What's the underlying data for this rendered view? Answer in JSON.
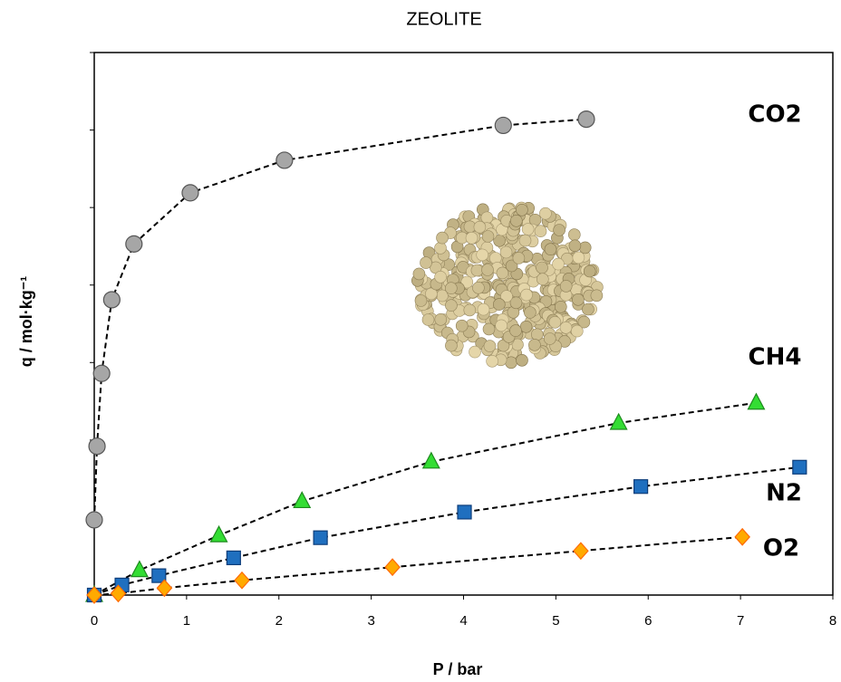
{
  "chart_data": {
    "type": "scatter",
    "title": "ZEOLITE",
    "xlabel": "P  / bar",
    "ylabel": "q  / mol·kg⁻¹",
    "xlim": [
      0,
      8
    ],
    "xticks": [
      0,
      1,
      2,
      3,
      4,
      5,
      6,
      7,
      8
    ],
    "ylim": [
      0,
      7
    ],
    "yticks": [
      0,
      1,
      2,
      3,
      4,
      5,
      6,
      7
    ],
    "ytick_labels": false,
    "line_style": "dashed",
    "series": [
      {
        "name": "CO2",
        "color": "#a6a6a6",
        "marker": "circle",
        "x": [
          0,
          0.03,
          0.08,
          0.19,
          0.43,
          1.04,
          2.06,
          4.43,
          5.33
        ],
        "values": [
          0.97,
          1.92,
          2.86,
          3.81,
          4.53,
          5.19,
          5.61,
          6.06,
          6.14
        ]
      },
      {
        "name": "CH4",
        "color": "#33dd33",
        "marker": "triangle",
        "x": [
          0,
          0.49,
          1.35,
          2.25,
          3.65,
          5.68,
          7.17
        ],
        "values": [
          0,
          0.32,
          0.77,
          1.21,
          1.72,
          2.22,
          2.48
        ]
      },
      {
        "name": "N2",
        "color": "#1f6fbf",
        "marker": "square",
        "x": [
          0,
          0.3,
          0.7,
          1.51,
          2.45,
          4.01,
          5.92,
          7.64
        ],
        "values": [
          0,
          0.13,
          0.25,
          0.48,
          0.74,
          1.07,
          1.4,
          1.65
        ]
      },
      {
        "name": "O2",
        "color": "#ffaa00",
        "marker": "diamond",
        "x": [
          0,
          0.26,
          0.76,
          1.6,
          3.23,
          5.27,
          7.02
        ],
        "values": [
          0,
          0.02,
          0.09,
          0.19,
          0.36,
          0.57,
          0.75
        ]
      }
    ]
  }
}
